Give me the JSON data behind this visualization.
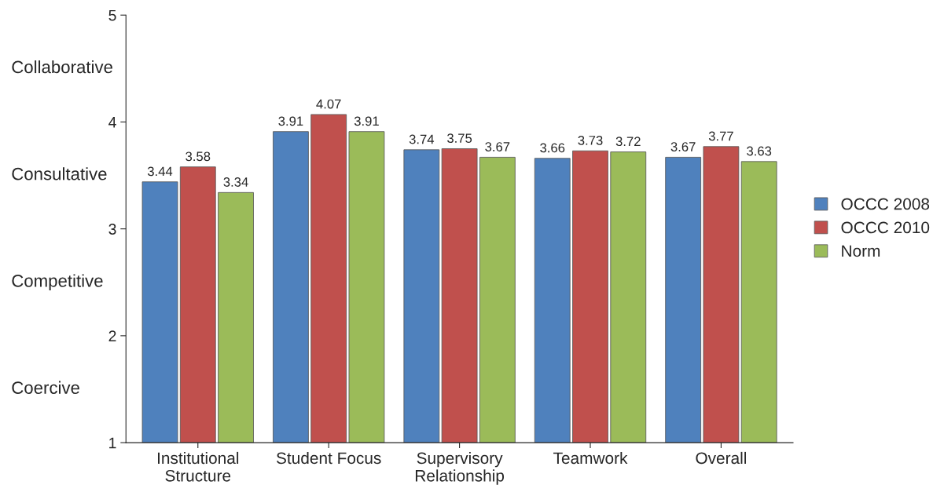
{
  "chart_data": {
    "type": "bar",
    "categories": [
      "Institutional\nStructure",
      "Student Focus",
      "Supervisory\nRelationship",
      "Teamwork",
      "Overall"
    ],
    "series": [
      {
        "name": "OCCC 2008",
        "color": "#4f81bd",
        "values": [
          3.44,
          3.91,
          3.74,
          3.66,
          3.67
        ]
      },
      {
        "name": "OCCC 2010",
        "color": "#c0504d",
        "values": [
          3.58,
          4.07,
          3.75,
          3.73,
          3.77
        ]
      },
      {
        "name": "Norm",
        "color": "#9bbb59",
        "values": [
          3.34,
          3.91,
          3.67,
          3.72,
          3.63
        ]
      }
    ],
    "ylim": [
      1,
      5
    ],
    "yticks": [
      1,
      2,
      3,
      4,
      5
    ],
    "grid": false,
    "legend": "right",
    "data_labels": true,
    "annotations": [
      "Collaborative",
      "Consultative",
      "Competitive",
      "Coercive"
    ]
  }
}
